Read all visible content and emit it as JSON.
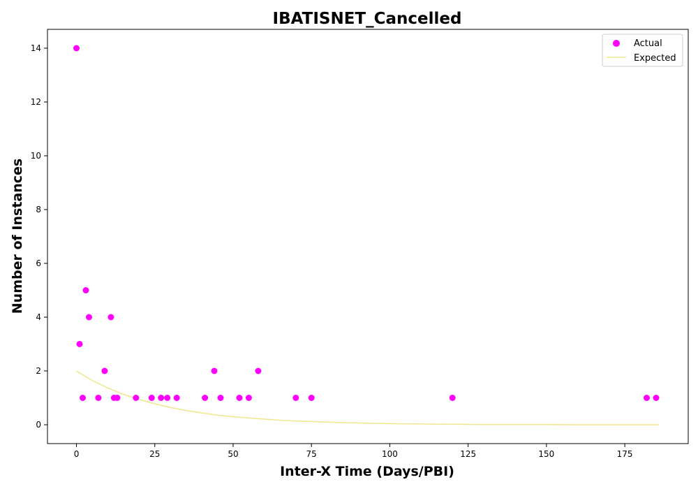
{
  "chart_data": {
    "type": "scatter",
    "title": "IBATISNET_Cancelled",
    "xlabel": "Inter-X Time (Days/PBI)",
    "ylabel": "Number of Instances",
    "xlim": [
      -9.25,
      195.25
    ],
    "ylim": [
      -0.7,
      14.7
    ],
    "xticks": [
      0,
      25,
      50,
      75,
      100,
      125,
      150,
      175
    ],
    "yticks": [
      0,
      2,
      4,
      6,
      8,
      10,
      12,
      14
    ],
    "grid": false,
    "legend_position": "top-right",
    "series": [
      {
        "name": "Actual",
        "kind": "scatter",
        "color": "#ff00ff",
        "points": [
          [
            0,
            14
          ],
          [
            1,
            3
          ],
          [
            2,
            1
          ],
          [
            3,
            5
          ],
          [
            4,
            4
          ],
          [
            7,
            1
          ],
          [
            9,
            2
          ],
          [
            11,
            4
          ],
          [
            12,
            1
          ],
          [
            13,
            1
          ],
          [
            19,
            1
          ],
          [
            24,
            1
          ],
          [
            27,
            1
          ],
          [
            29,
            1
          ],
          [
            32,
            1
          ],
          [
            41,
            1
          ],
          [
            44,
            2
          ],
          [
            46,
            1
          ],
          [
            52,
            1
          ],
          [
            55,
            1
          ],
          [
            58,
            2
          ],
          [
            70,
            1
          ],
          [
            75,
            1
          ],
          [
            120,
            1
          ],
          [
            182,
            1
          ],
          [
            185,
            1
          ]
        ]
      },
      {
        "name": "Expected",
        "kind": "line",
        "color": "#f0e68c",
        "x": [
          0,
          5,
          10,
          15,
          20,
          25,
          30,
          35,
          40,
          45,
          50,
          55,
          60,
          65,
          70,
          75,
          80,
          85,
          90,
          95,
          100,
          110,
          120,
          130,
          140,
          150,
          160,
          170,
          180,
          186
        ],
        "y": [
          2.0,
          1.65,
          1.37,
          1.13,
          0.94,
          0.78,
          0.64,
          0.53,
          0.44,
          0.36,
          0.3,
          0.25,
          0.21,
          0.17,
          0.14,
          0.12,
          0.1,
          0.08,
          0.07,
          0.05,
          0.04,
          0.03,
          0.02,
          0.01,
          0.01,
          0.01,
          0.0,
          0.0,
          0.0,
          0.0
        ]
      }
    ]
  }
}
